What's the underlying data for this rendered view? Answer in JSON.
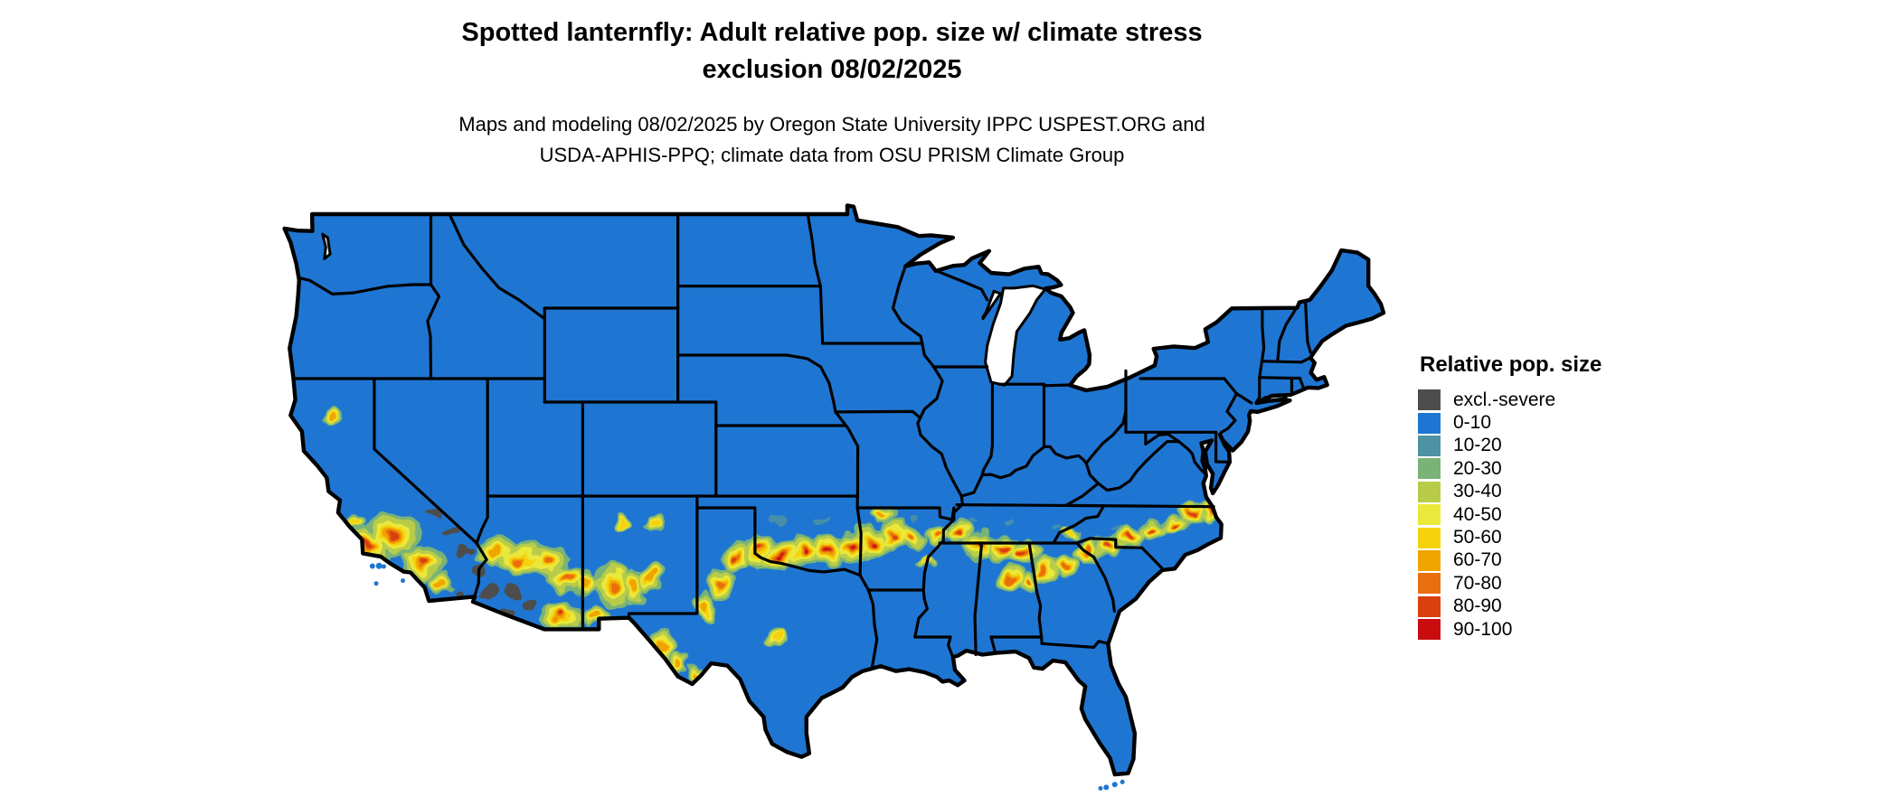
{
  "title": {
    "line1": "Spotted lanternfly: Adult relative pop. size w/ climate stress",
    "line2": "exclusion 08/02/2025"
  },
  "subtitle": {
    "line1": "Maps and modeling 08/02/2025 by Oregon State University IPPC USPEST.ORG and",
    "line2": "USDA-APHIS-PPQ; climate data from OSU PRISM Climate Group"
  },
  "legend": {
    "title": "Relative pop. size",
    "items": [
      {
        "label": "excl.-severe",
        "color": "#4d4d4d"
      },
      {
        "label": "0-10",
        "color": "#1f76d2"
      },
      {
        "label": "10-20",
        "color": "#4e93a3"
      },
      {
        "label": "20-30",
        "color": "#79b377"
      },
      {
        "label": "30-40",
        "color": "#b9cc4a"
      },
      {
        "label": "40-50",
        "color": "#eae83a"
      },
      {
        "label": "50-60",
        "color": "#f6d20c"
      },
      {
        "label": "60-70",
        "color": "#f0a400"
      },
      {
        "label": "70-80",
        "color": "#e96e0e"
      },
      {
        "label": "80-90",
        "color": "#d8400e"
      },
      {
        "label": "90-100",
        "color": "#c90c0e"
      }
    ]
  },
  "map": {
    "base_fill": "#1f76d2",
    "border_color": "#000000",
    "water_background": "#ffffff",
    "excluded_fill": "#4d4d4d"
  }
}
